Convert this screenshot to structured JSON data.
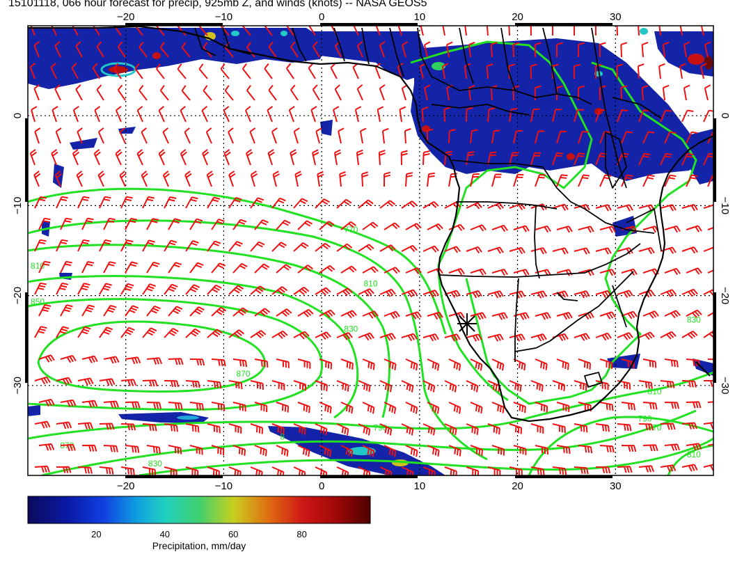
{
  "title": "15101118, 066 hour forecast for precip, 925mb Z, and winds (knots) -- NASA GEOS5",
  "map": {
    "lon_range": [
      -30,
      40
    ],
    "lat_range": [
      -40,
      10
    ],
    "lon_ticks": [
      {
        "value": -20,
        "label": "−20"
      },
      {
        "value": -10,
        "label": "−10"
      },
      {
        "value": 0,
        "label": "0"
      },
      {
        "value": 10,
        "label": "10"
      },
      {
        "value": 20,
        "label": "20"
      },
      {
        "value": 30,
        "label": "30"
      }
    ],
    "lat_ticks": [
      {
        "value": 0,
        "label": "0"
      },
      {
        "value": -10,
        "label": "−10"
      },
      {
        "value": -20,
        "label": "−20"
      },
      {
        "value": -30,
        "label": "−30"
      }
    ],
    "contour_labels": [
      {
        "text": "770",
        "lon": 3,
        "lat": -13
      },
      {
        "text": "810",
        "lon": 5,
        "lat": -19
      },
      {
        "text": "830",
        "lon": 3,
        "lat": -24
      },
      {
        "text": "870",
        "lon": -8,
        "lat": -29
      },
      {
        "text": "810",
        "lon": -29,
        "lat": -17
      },
      {
        "text": "850",
        "lon": -29,
        "lat": -21
      },
      {
        "text": "8",
        "lon": -4,
        "lat": -36
      },
      {
        "text": "790",
        "lon": 6,
        "lat": -35
      },
      {
        "text": "870",
        "lon": -26,
        "lat": -37
      },
      {
        "text": "830",
        "lon": 38,
        "lat": -23
      },
      {
        "text": "810",
        "lon": 34,
        "lat": -31
      },
      {
        "text": "770",
        "lon": 34,
        "lat": -35
      },
      {
        "text": "790",
        "lon": 33,
        "lat": -34
      },
      {
        "text": "810",
        "lon": 38,
        "lat": -38
      },
      {
        "text": "830",
        "lon": -17,
        "lat": -39
      }
    ],
    "station_marker": {
      "name": "station-marker",
      "lon": 14.5,
      "lat": -23
    }
  },
  "colorbar": {
    "label": "Precipitation, mm/day",
    "tick_labels": [
      "20",
      "40",
      "60",
      "80"
    ],
    "range": [
      0,
      100
    ]
  },
  "colors": {
    "precip_light": "#2030c0",
    "precip_dark": "#0a1590",
    "contour": "#22e022",
    "barb": "#ee1111",
    "coast": "#000000"
  }
}
